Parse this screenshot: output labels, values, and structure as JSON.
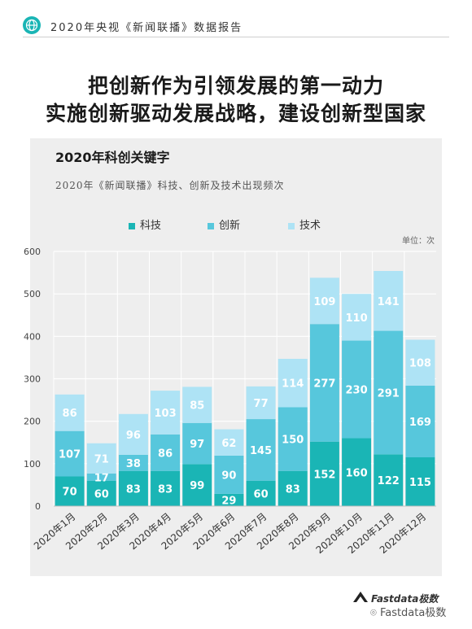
{
  "header": {
    "text": "2020年央视《新闻联播》数据报告"
  },
  "headline": {
    "line1": "把创新作为引领发展的第一动力",
    "line2": "实施创新驱动发展战略，建设创新型国家"
  },
  "footer": {
    "brand": "Fastdata极数",
    "wechat": "Fastdata极数"
  },
  "colors": {
    "keji": "#1ab5b5",
    "chuangxin": "#57c7dc",
    "jishu": "#aee3f5",
    "panel": "#eeeeee",
    "grid": "#ffffff"
  },
  "chart_data": {
    "type": "bar",
    "stacked": true,
    "title": "2020年科创关键字",
    "subtitle": "2020年《新闻联播》科技、创新及技术出现频次",
    "unit": "单位：次",
    "categories": [
      "2020年1月",
      "2020年2月",
      "2020年3月",
      "2020年4月",
      "2020年5月",
      "2020年6月",
      "2020年7月",
      "2020年8月",
      "2020年9月",
      "2020年10月",
      "2020年11月",
      "2020年12月"
    ],
    "series": [
      {
        "name": "科技",
        "color": "#1ab5b5",
        "values": [
          70,
          60,
          83,
          83,
          99,
          29,
          60,
          83,
          152,
          160,
          122,
          115
        ]
      },
      {
        "name": "创新",
        "color": "#57c7dc",
        "values": [
          107,
          17,
          38,
          86,
          97,
          90,
          145,
          150,
          277,
          230,
          291,
          169
        ]
      },
      {
        "name": "技术",
        "color": "#aee3f5",
        "values": [
          86,
          71,
          96,
          103,
          85,
          62,
          77,
          114,
          109,
          110,
          141,
          108
        ]
      }
    ],
    "ylim": [
      0,
      600
    ],
    "yticks": [
      0,
      100,
      200,
      300,
      400,
      500,
      600
    ],
    "legend": "top",
    "grid": true
  }
}
